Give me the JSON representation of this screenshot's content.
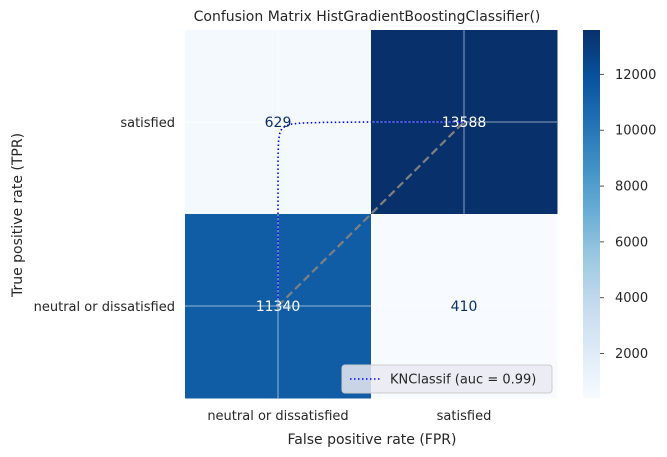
{
  "chart_data": [
    {
      "type": "heatmap",
      "title": "Confusion Matrix HistGradientBoostingClassifier()",
      "xlabel": "False positive rate (FPR)",
      "ylabel": "True positive rate (TPR)",
      "xticklabels": [
        "neutral or dissatisfied",
        "satisfied"
      ],
      "yticklabels": [
        "satisfied",
        "neutral or dissatisfied"
      ],
      "cells": [
        {
          "row": 0,
          "col": 0,
          "value": 629,
          "label": "629"
        },
        {
          "row": 0,
          "col": 1,
          "value": 13588,
          "label": "13588"
        },
        {
          "row": 1,
          "col": 0,
          "value": 11340,
          "label": "11340"
        },
        {
          "row": 1,
          "col": 1,
          "value": 410,
          "label": "410"
        }
      ],
      "colormap": "Blues",
      "colorbar": {
        "ticks": [
          2000,
          4000,
          6000,
          8000,
          10000,
          12000
        ],
        "tick_labels": [
          "2000",
          "4000",
          "6000",
          "8000",
          "10000",
          "12000"
        ],
        "range": [
          410,
          13588
        ]
      }
    },
    {
      "type": "line",
      "series": [
        {
          "name": "KNClassif (auc = 0.99)",
          "style": "dotted",
          "color": "#0000ff",
          "x": [
            0.0,
            0.0,
            0.003,
            0.01,
            0.02,
            0.04,
            0.07,
            0.12,
            0.25,
            0.5,
            1.0
          ],
          "y": [
            0.0,
            0.8,
            0.9,
            0.94,
            0.963,
            0.978,
            0.988,
            0.994,
            0.998,
            1.0,
            1.0
          ]
        },
        {
          "name": "",
          "style": "dashed",
          "color": "#808080",
          "x": [
            0,
            1
          ],
          "y": [
            0,
            1
          ]
        }
      ],
      "xlim": [
        0,
        1
      ],
      "ylim": [
        0,
        1
      ],
      "legend_placement": "lower-right"
    }
  ]
}
